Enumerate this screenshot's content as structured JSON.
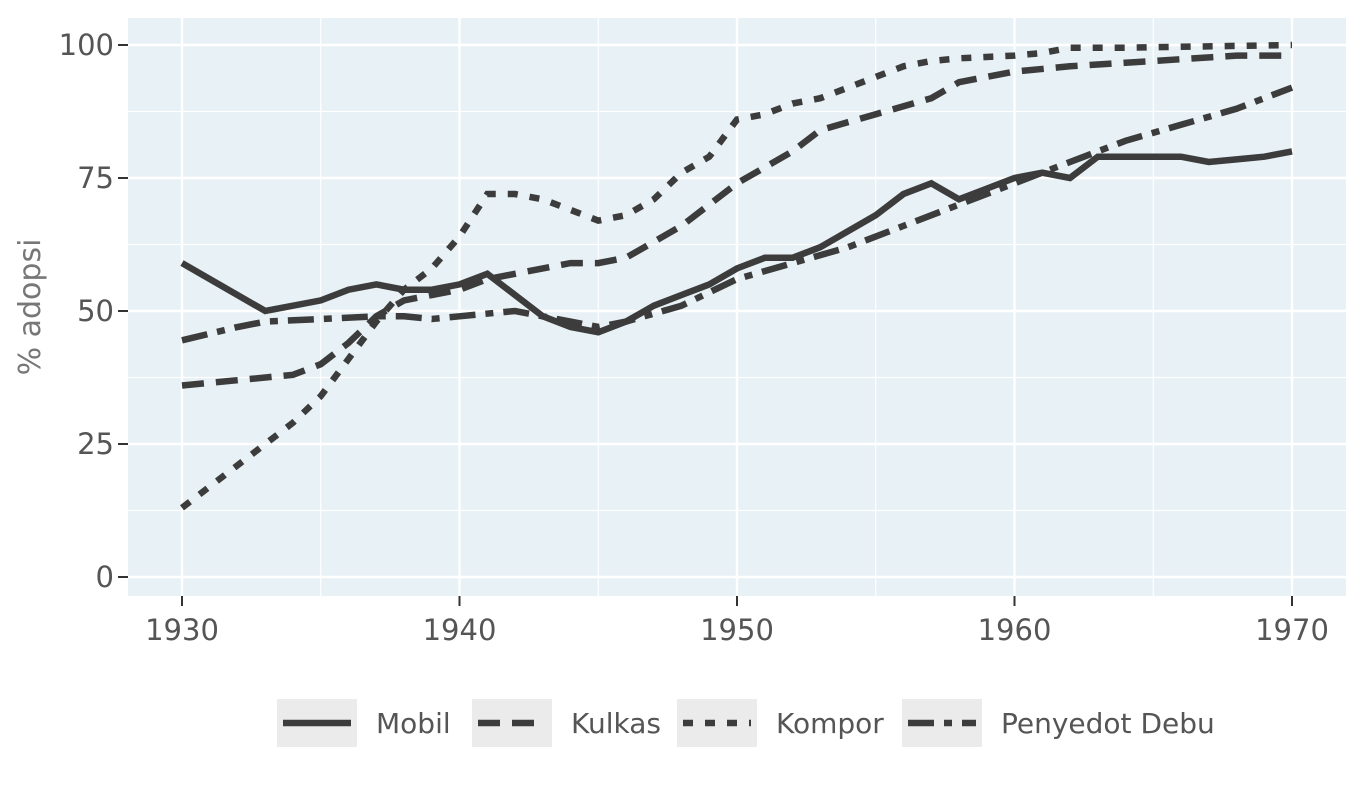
{
  "chart_data": {
    "type": "line",
    "title": "",
    "xlabel": "",
    "ylabel": "% adopsi",
    "xlim": [
      1928,
      1972
    ],
    "ylim": [
      -5,
      105
    ],
    "x_ticks": [
      1930,
      1940,
      1950,
      1960,
      1970
    ],
    "y_ticks": [
      0,
      25,
      50,
      75,
      100
    ],
    "x_tick_labels": [
      "1930",
      "1940",
      "1950",
      "1960",
      "1970"
    ],
    "y_tick_labels": [
      "0",
      "25",
      "50",
      "75",
      "100"
    ],
    "grid": true,
    "legend_position": "bottom",
    "colors": {
      "panel": "#e8f1f5",
      "grid": "#ffffff",
      "line": "#3c3c3c",
      "axis_text": "#555555",
      "legend_key_bg": "#ebebeb"
    },
    "series": [
      {
        "name": "Mobil",
        "style": "solid",
        "points": [
          [
            1930,
            59
          ],
          [
            1933,
            50
          ],
          [
            1935,
            52
          ],
          [
            1936,
            54
          ],
          [
            1937,
            55
          ],
          [
            1938,
            54
          ],
          [
            1939,
            54
          ],
          [
            1940,
            55
          ],
          [
            1941,
            57
          ],
          [
            1943,
            49
          ],
          [
            1944,
            47
          ],
          [
            1945,
            46
          ],
          [
            1946,
            48
          ],
          [
            1947,
            51
          ],
          [
            1948,
            53
          ],
          [
            1949,
            55
          ],
          [
            1950,
            58
          ],
          [
            1951,
            60
          ],
          [
            1952,
            60
          ],
          [
            1953,
            62
          ],
          [
            1954,
            65
          ],
          [
            1955,
            68
          ],
          [
            1956,
            72
          ],
          [
            1957,
            74
          ],
          [
            1958,
            71
          ],
          [
            1959,
            73
          ],
          [
            1960,
            75
          ],
          [
            1961,
            76
          ],
          [
            1962,
            75
          ],
          [
            1963,
            79
          ],
          [
            1964,
            79
          ],
          [
            1965,
            79
          ],
          [
            1966,
            79
          ],
          [
            1967,
            78
          ],
          [
            1968,
            78.5
          ],
          [
            1969,
            79
          ],
          [
            1970,
            80
          ]
        ]
      },
      {
        "name": "Kulkas",
        "style": "dashed",
        "points": [
          [
            1930,
            36
          ],
          [
            1932,
            37
          ],
          [
            1934,
            38
          ],
          [
            1935,
            40
          ],
          [
            1936,
            44
          ],
          [
            1937,
            49
          ],
          [
            1938,
            52
          ],
          [
            1939,
            53
          ],
          [
            1940,
            54
          ],
          [
            1941,
            56
          ],
          [
            1942,
            57
          ],
          [
            1943,
            58
          ],
          [
            1944,
            59
          ],
          [
            1945,
            59
          ],
          [
            1946,
            60
          ],
          [
            1948,
            66
          ],
          [
            1950,
            74
          ],
          [
            1952,
            80
          ],
          [
            1953,
            84
          ],
          [
            1955,
            87
          ],
          [
            1957,
            90
          ],
          [
            1958,
            93
          ],
          [
            1960,
            95
          ],
          [
            1962,
            96
          ],
          [
            1965,
            97
          ],
          [
            1968,
            98
          ],
          [
            1970,
            98
          ]
        ]
      },
      {
        "name": "Kompor",
        "style": "dotted",
        "points": [
          [
            1930,
            13
          ],
          [
            1932,
            21
          ],
          [
            1934,
            29
          ],
          [
            1935,
            34
          ],
          [
            1936,
            41
          ],
          [
            1937,
            48
          ],
          [
            1938,
            54
          ],
          [
            1939,
            58
          ],
          [
            1940,
            64
          ],
          [
            1941,
            72
          ],
          [
            1942,
            72
          ],
          [
            1943,
            71
          ],
          [
            1944,
            69
          ],
          [
            1945,
            67
          ],
          [
            1946,
            68
          ],
          [
            1947,
            71
          ],
          [
            1948,
            76
          ],
          [
            1949,
            79
          ],
          [
            1950,
            86
          ],
          [
            1951,
            87
          ],
          [
            1952,
            89
          ],
          [
            1953,
            90
          ],
          [
            1954,
            92
          ],
          [
            1955,
            94
          ],
          [
            1956,
            96
          ],
          [
            1957,
            97
          ],
          [
            1958,
            97.5
          ],
          [
            1960,
            98
          ],
          [
            1961,
            98.5
          ],
          [
            1962,
            99.5
          ],
          [
            1964,
            99.5
          ],
          [
            1970,
            100
          ]
        ]
      },
      {
        "name": "Penyedot Debu",
        "style": "dashdot",
        "points": [
          [
            1930,
            44.5
          ],
          [
            1932,
            47
          ],
          [
            1933,
            48
          ],
          [
            1935,
            48.5
          ],
          [
            1937,
            49
          ],
          [
            1938,
            49
          ],
          [
            1939,
            48.5
          ],
          [
            1940,
            49
          ],
          [
            1942,
            50
          ],
          [
            1944,
            48
          ],
          [
            1945,
            47
          ],
          [
            1946,
            48
          ],
          [
            1948,
            51
          ],
          [
            1950,
            56
          ],
          [
            1952,
            59
          ],
          [
            1954,
            62
          ],
          [
            1956,
            66
          ],
          [
            1958,
            70
          ],
          [
            1960,
            74
          ],
          [
            1962,
            78
          ],
          [
            1964,
            82
          ],
          [
            1966,
            85
          ],
          [
            1968,
            88
          ],
          [
            1970,
            92
          ]
        ]
      }
    ]
  }
}
